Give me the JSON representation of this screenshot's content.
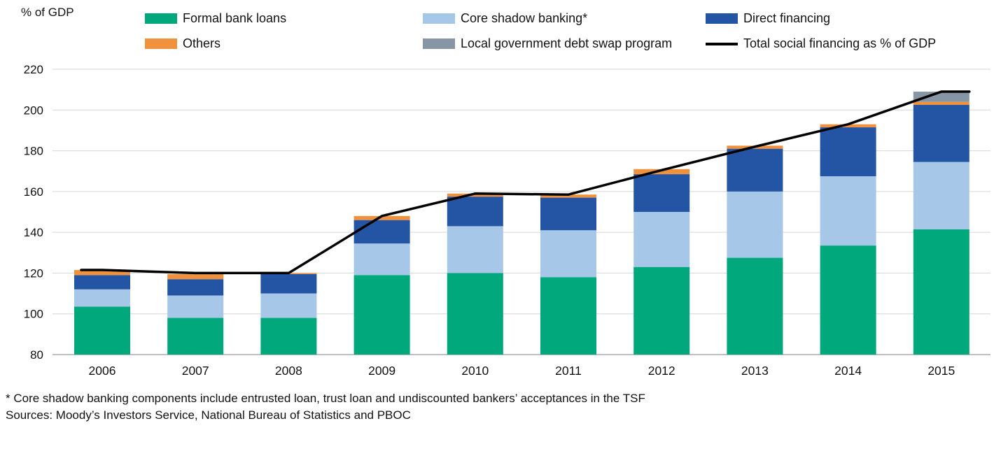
{
  "page": {
    "footnote1": "* Core shadow banking components include entrusted loan, trust loan and undiscounted bankers’ acceptances in the TSF",
    "footnote2": "Sources: Moody’s Investors Service, National Bureau of Statistics and PBOC"
  },
  "chart_data": {
    "type": "bar",
    "stacked": true,
    "ylabel": "% of GDP",
    "xlabel": "",
    "ylim": [
      80,
      220
    ],
    "yticks": [
      80,
      100,
      120,
      140,
      160,
      180,
      200,
      220
    ],
    "grid": true,
    "legend_position": "top",
    "categories": [
      "2006",
      "2007",
      "2008",
      "2009",
      "2010",
      "2011",
      "2012",
      "2013",
      "2014",
      "2015"
    ],
    "series": [
      {
        "name": "Formal bank loans",
        "color": "#00A87C",
        "values": [
          103.5,
          98,
          98,
          119,
          120,
          118,
          123,
          127.5,
          133.5,
          141.5
        ]
      },
      {
        "name": "Core shadow banking*",
        "color": "#A7C7E8",
        "values": [
          8.5,
          11,
          12,
          15.5,
          23,
          23,
          27,
          32.5,
          34,
          33
        ]
      },
      {
        "name": "Direct financing",
        "color": "#2455A4",
        "values": [
          7,
          8,
          9.5,
          11.5,
          14.5,
          16,
          18.5,
          21,
          24,
          28
        ]
      },
      {
        "name": "Others",
        "color": "#F0913D",
        "values": [
          2.5,
          2.5,
          0.5,
          2,
          1.5,
          1.5,
          2.5,
          1.5,
          1.5,
          1.5
        ]
      },
      {
        "name": "Local government debt swap program",
        "color": "#8796A4",
        "values": [
          0,
          0,
          0,
          0,
          0,
          0,
          0,
          0,
          0,
          5
        ]
      }
    ],
    "line": {
      "name": "Total social financing as % of GDP",
      "color": "#000000",
      "values": [
        121.5,
        120,
        120,
        148,
        159,
        158.5,
        170.5,
        182,
        193,
        209
      ]
    },
    "totals": [
      121.5,
      119.5,
      120,
      148,
      159,
      158.5,
      171,
      182.5,
      193,
      209
    ]
  }
}
